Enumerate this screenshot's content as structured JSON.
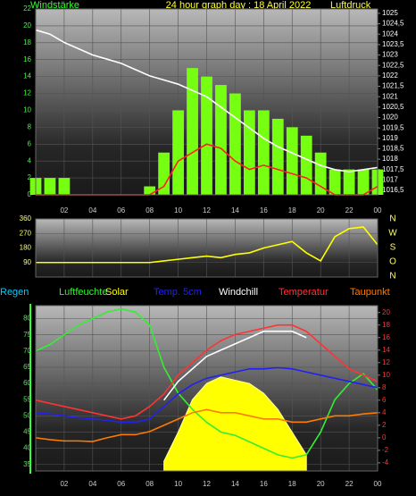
{
  "chart_data": [
    {
      "type": "combo",
      "title": "24 hour graph day : 18 April 2022",
      "y_label": "Windstärke",
      "y2_label": "Luftdruck",
      "x": [
        0,
        1,
        2,
        3,
        4,
        5,
        6,
        7,
        8,
        9,
        10,
        11,
        12,
        13,
        14,
        15,
        16,
        17,
        18,
        19,
        20,
        21,
        22,
        23,
        24
      ],
      "xlim": [
        0,
        24
      ],
      "xticks": [
        {
          "value": 2,
          "label": "02"
        },
        {
          "value": 4,
          "label": "04"
        },
        {
          "value": 6,
          "label": "06"
        },
        {
          "value": 8,
          "label": "08"
        },
        10,
        12,
        14,
        16,
        18,
        20,
        22,
        {
          "value": 24,
          "label": "00"
        }
      ],
      "ylim": [
        0,
        22
      ],
      "yticks": [
        0,
        2,
        4,
        6,
        8,
        10,
        12,
        14,
        16,
        18,
        20,
        22
      ],
      "ytick_color": "#33ff33",
      "y2lim": [
        1016.29,
        1025.21
      ],
      "y2ticks": [
        {
          "value": 1016.5,
          "label": "1016,5"
        },
        1017,
        {
          "value": 1017.5,
          "label": "1017,5"
        },
        1018,
        {
          "value": 1018.5,
          "label": "1018,5"
        },
        1019,
        {
          "value": 1019.5,
          "label": "1019,5"
        },
        1020,
        {
          "value": 1020.5,
          "label": "1020,5"
        },
        1021,
        {
          "value": 1021.5,
          "label": "1021,5"
        },
        1022,
        {
          "value": 1022.5,
          "label": "1022,5"
        },
        1023,
        {
          "value": 1023.5,
          "label": "1023,5"
        },
        1024,
        {
          "value": 1024.5,
          "label": "1024,5"
        },
        1025
      ],
      "y2tick_color": "#ffffff",
      "grid": true,
      "series": [
        {
          "style": "bars",
          "color": "#77ff11",
          "values": [
            2,
            2,
            2,
            0,
            0,
            0,
            0,
            0,
            1,
            5,
            10,
            15,
            14,
            13,
            12,
            10,
            10,
            9,
            8,
            7,
            5,
            3,
            3,
            3,
            3
          ]
        },
        {
          "style": "line",
          "color": "#ff2020",
          "values": [
            0,
            0,
            0,
            0,
            0,
            0,
            0,
            0,
            0,
            1,
            4,
            5,
            6,
            5.5,
            4,
            3,
            3.5,
            3,
            2.5,
            2,
            1,
            0,
            0,
            0,
            1
          ]
        },
        {
          "style": "line",
          "color": "#ffffff",
          "axis": "y2",
          "values": [
            1024.2,
            1024,
            1023.6,
            1023.3,
            1023,
            1022.8,
            1022.6,
            1022.3,
            1022,
            1021.8,
            1021.6,
            1021.3,
            1021,
            1020.5,
            1020,
            1019.5,
            1019,
            1018.6,
            1018.3,
            1018,
            1017.7,
            1017.5,
            1017.4,
            1017.5,
            1017.6
          ]
        }
      ]
    },
    {
      "type": "combo",
      "x": [
        0,
        1,
        2,
        3,
        4,
        5,
        6,
        7,
        8,
        9,
        10,
        11,
        12,
        13,
        14,
        15,
        16,
        17,
        18,
        19,
        20,
        21,
        22,
        23,
        24
      ],
      "xlim": [
        0,
        24
      ],
      "ylim": [
        0,
        360
      ],
      "yticks": [
        90,
        180,
        270,
        360
      ],
      "ytick_color": "#ffff66",
      "grid": true,
      "compass": [
        "N",
        "W",
        "S",
        "O",
        "N"
      ],
      "series": [
        {
          "style": "line",
          "color": "#ffff00",
          "values": [
            90,
            90,
            90,
            90,
            90,
            90,
            90,
            90,
            90,
            100,
            110,
            120,
            130,
            120,
            140,
            150,
            180,
            200,
            220,
            150,
            100,
            250,
            300,
            310,
            200
          ]
        }
      ]
    },
    {
      "type": "combo",
      "x": [
        0,
        1,
        2,
        3,
        4,
        5,
        6,
        7,
        8,
        9,
        10,
        11,
        12,
        13,
        14,
        15,
        16,
        17,
        18,
        19,
        20,
        21,
        22,
        23,
        24
      ],
      "xlim": [
        0,
        24
      ],
      "xticks": [
        {
          "value": 2,
          "label": "02"
        },
        {
          "value": 4,
          "label": "04"
        },
        {
          "value": 6,
          "label": "06"
        },
        {
          "value": 8,
          "label": "08"
        },
        10,
        12,
        14,
        16,
        18,
        20,
        22,
        {
          "value": 24,
          "label": "00"
        }
      ],
      "ylim": [
        33,
        84
      ],
      "yticks": [
        35,
        40,
        45,
        50,
        55,
        60,
        65,
        70,
        75,
        80
      ],
      "ytick_color": "#33ff33",
      "y2lim": [
        -5.3,
        21.1
      ],
      "y2ticks": [
        -4,
        -2,
        0,
        2,
        4,
        6,
        8,
        10,
        12,
        14,
        16,
        18,
        20
      ],
      "y2tick_color": "#ff3333",
      "grid": true,
      "series": [
        {
          "name": "Regen",
          "style": "line",
          "color": "#00ccff",
          "values": [
            null,
            null,
            null,
            null,
            null,
            null,
            null,
            null,
            null,
            null,
            null,
            null,
            null,
            null,
            null,
            null,
            null,
            null,
            null,
            null,
            null,
            null,
            null,
            null,
            null
          ]
        },
        {
          "name": "Luftfeuchte",
          "style": "line",
          "color": "#33ee33",
          "values": [
            70,
            72,
            75,
            78,
            80,
            82,
            83,
            82,
            78,
            65,
            57,
            52,
            48,
            45,
            44,
            42,
            40,
            38,
            37,
            38,
            45,
            55,
            60,
            63,
            58
          ]
        },
        {
          "name": "Solar",
          "style": "area",
          "color": "#ffff00",
          "values": [
            null,
            null,
            null,
            null,
            null,
            null,
            null,
            null,
            null,
            36,
            45,
            55,
            60,
            62,
            61,
            60,
            57,
            52,
            45,
            38,
            null,
            null,
            null,
            null,
            null
          ]
        },
        {
          "name": "Temp. 5cm",
          "style": "line",
          "color": "#2222ee",
          "axis": "y2",
          "values": [
            4,
            3.8,
            3.5,
            3.2,
            3,
            2.8,
            2.5,
            2.5,
            3,
            5,
            7,
            8.5,
            9.5,
            10,
            10.5,
            11,
            11,
            11.2,
            11,
            10.5,
            10,
            9.5,
            9,
            8.5,
            8
          ]
        },
        {
          "name": "Windchill",
          "style": "line",
          "color": "#ffffff",
          "axis": "y2",
          "values": [
            null,
            null,
            null,
            null,
            null,
            null,
            null,
            null,
            null,
            6,
            9,
            11,
            13,
            14,
            15,
            16,
            17,
            17,
            17,
            16,
            null,
            null,
            null,
            null,
            null
          ]
        },
        {
          "name": "Temperatur",
          "style": "line",
          "color": "#ff3333",
          "axis": "y2",
          "values": [
            6,
            5.5,
            5,
            4.5,
            4,
            3.5,
            3,
            3.5,
            5,
            7,
            10,
            12,
            14,
            15.5,
            16.5,
            17,
            17.5,
            18,
            18,
            17,
            15,
            13,
            11,
            10,
            9
          ]
        },
        {
          "name": "Taupunkt",
          "style": "line",
          "color": "#ff7a00",
          "axis": "y2",
          "values": [
            0,
            -0.3,
            -0.5,
            -0.5,
            -0.6,
            0,
            0.5,
            0.5,
            1,
            2,
            3,
            4,
            4.5,
            4,
            4,
            3.5,
            3,
            3,
            2.5,
            2.5,
            3,
            3.5,
            3.5,
            3.8,
            4
          ]
        }
      ]
    }
  ]
}
